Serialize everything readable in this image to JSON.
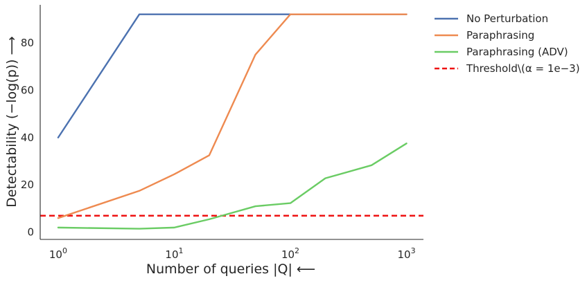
{
  "chart_data": {
    "type": "line",
    "xscale": "log",
    "xlim": [
      0.7,
      1400
    ],
    "ylim": [
      -3,
      96
    ],
    "xlabel": "Number of queries |Q| ⟵",
    "ylabel": "Detectability (−log(p)) ⟶",
    "grid": false,
    "legend_position": "outside-right",
    "x_ticks": [
      {
        "value": 1,
        "base": "10",
        "exp": "0"
      },
      {
        "value": 10,
        "base": "10",
        "exp": "1"
      },
      {
        "value": 100,
        "base": "10",
        "exp": "2"
      },
      {
        "value": 1000,
        "base": "10",
        "exp": "3"
      }
    ],
    "y_ticks": [
      {
        "value": 0,
        "label": "0"
      },
      {
        "value": 20,
        "label": "20"
      },
      {
        "value": 40,
        "label": "40"
      },
      {
        "value": 60,
        "label": "60"
      },
      {
        "value": 80,
        "label": "80"
      }
    ],
    "series": [
      {
        "name": "No Perturbation",
        "color": "#4c72b0",
        "points": [
          [
            1,
            40
          ],
          [
            5,
            92
          ],
          [
            100,
            92
          ],
          [
            1000,
            92
          ]
        ]
      },
      {
        "name": "Paraphrasing",
        "color": "#ee8a50",
        "points": [
          [
            1,
            6
          ],
          [
            5,
            17.5
          ],
          [
            10,
            24.5
          ],
          [
            20,
            32.5
          ],
          [
            50,
            75
          ],
          [
            100,
            92
          ],
          [
            200,
            92
          ],
          [
            500,
            92
          ],
          [
            1000,
            92
          ]
        ]
      },
      {
        "name": "Paraphrasing (ADV)",
        "color": "#6acc64",
        "points": [
          [
            1,
            2
          ],
          [
            5,
            1.5
          ],
          [
            10,
            2
          ],
          [
            20,
            5.5
          ],
          [
            50,
            11
          ],
          [
            100,
            12.3
          ],
          [
            200,
            22.8
          ],
          [
            500,
            28.3
          ],
          [
            1000,
            37.5
          ]
        ]
      }
    ],
    "threshold": {
      "name": "Threshold\\(α = 1e−3)",
      "value": 7,
      "color": "#ee1111",
      "style": "dashed"
    }
  }
}
